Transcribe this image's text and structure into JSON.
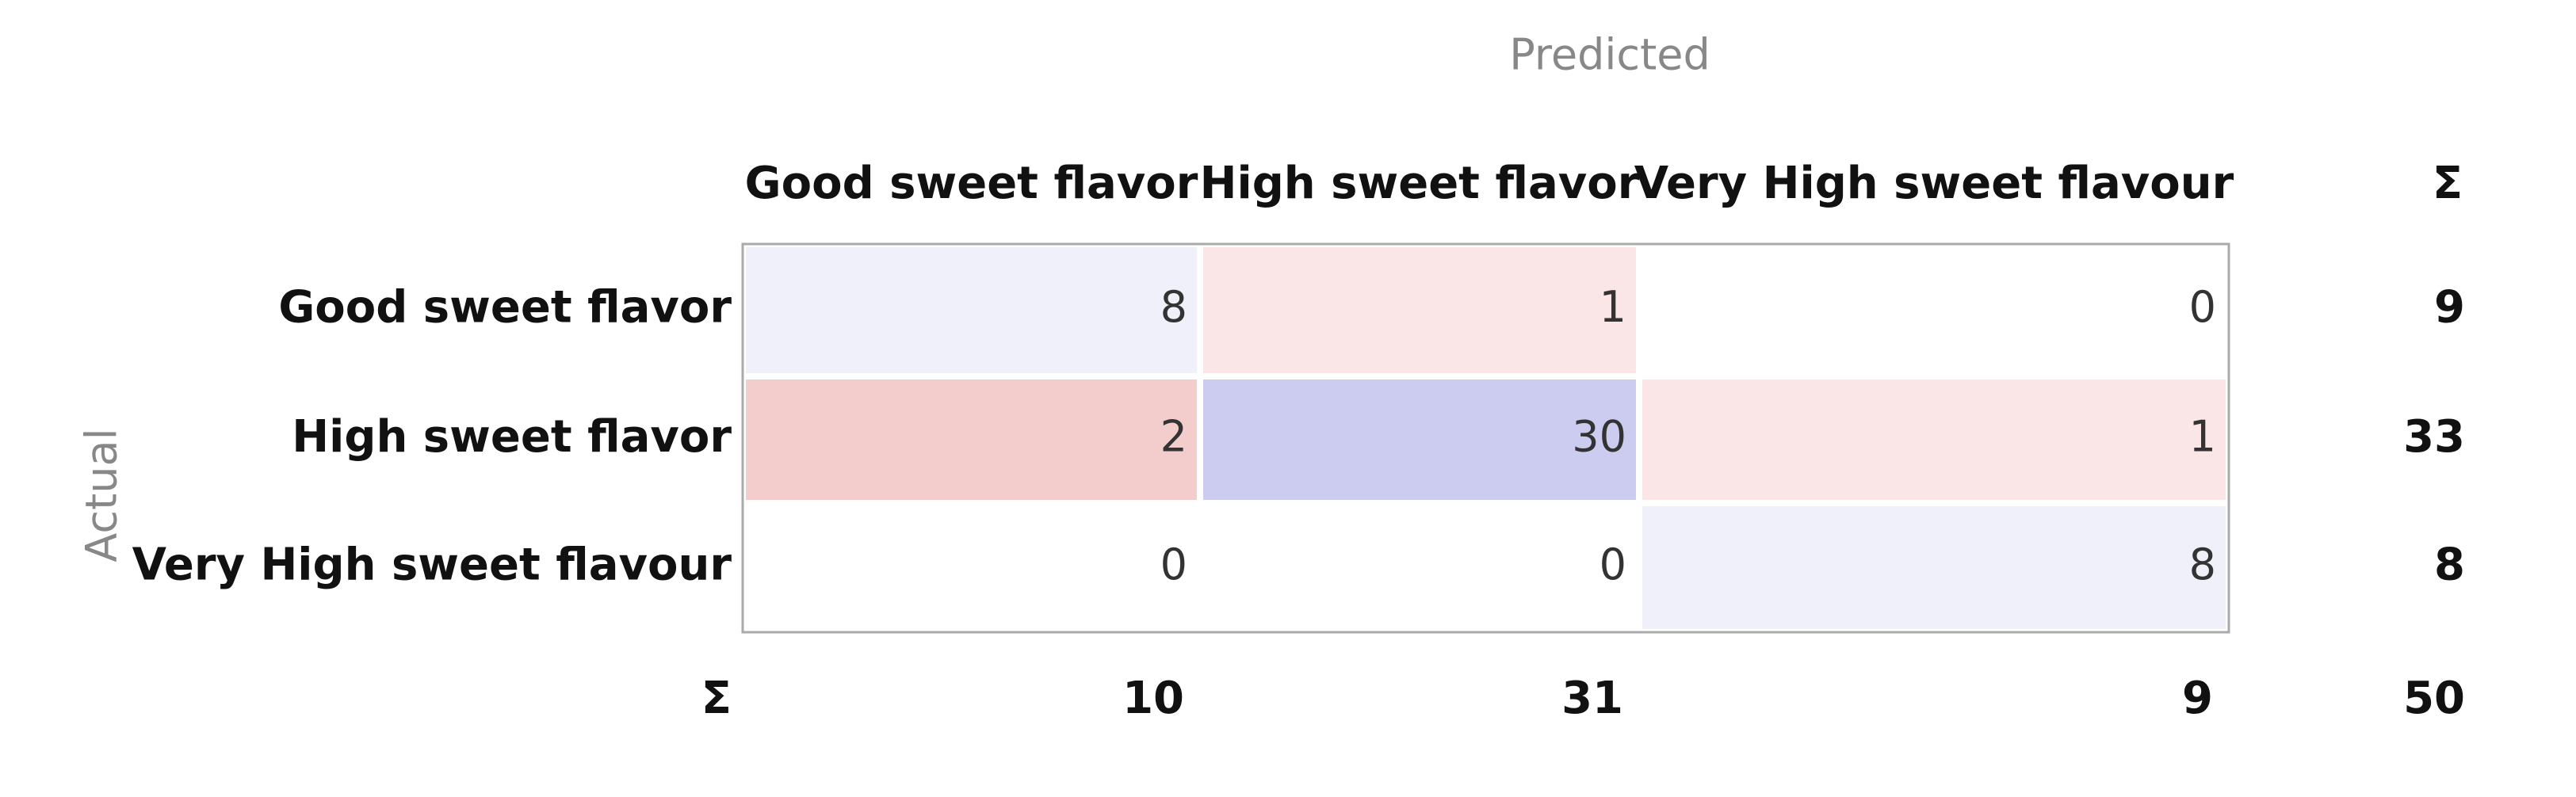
{
  "title": "Predicted",
  "row_axis_label": "Actual",
  "sum_label": "Σ",
  "columns": [
    "Good sweet flavor",
    "High sweet flavor",
    "Very High sweet flavour"
  ],
  "rows": [
    {
      "label": "Good sweet flavor",
      "cells": [
        8,
        1,
        0
      ],
      "total": 9
    },
    {
      "label": "High sweet flavor",
      "cells": [
        2,
        30,
        1
      ],
      "total": 33
    },
    {
      "label": "Very High sweet flavour",
      "cells": [
        0,
        0,
        8
      ],
      "total": 8
    }
  ],
  "column_totals": [
    10,
    31,
    9
  ],
  "grand_total": 50
}
